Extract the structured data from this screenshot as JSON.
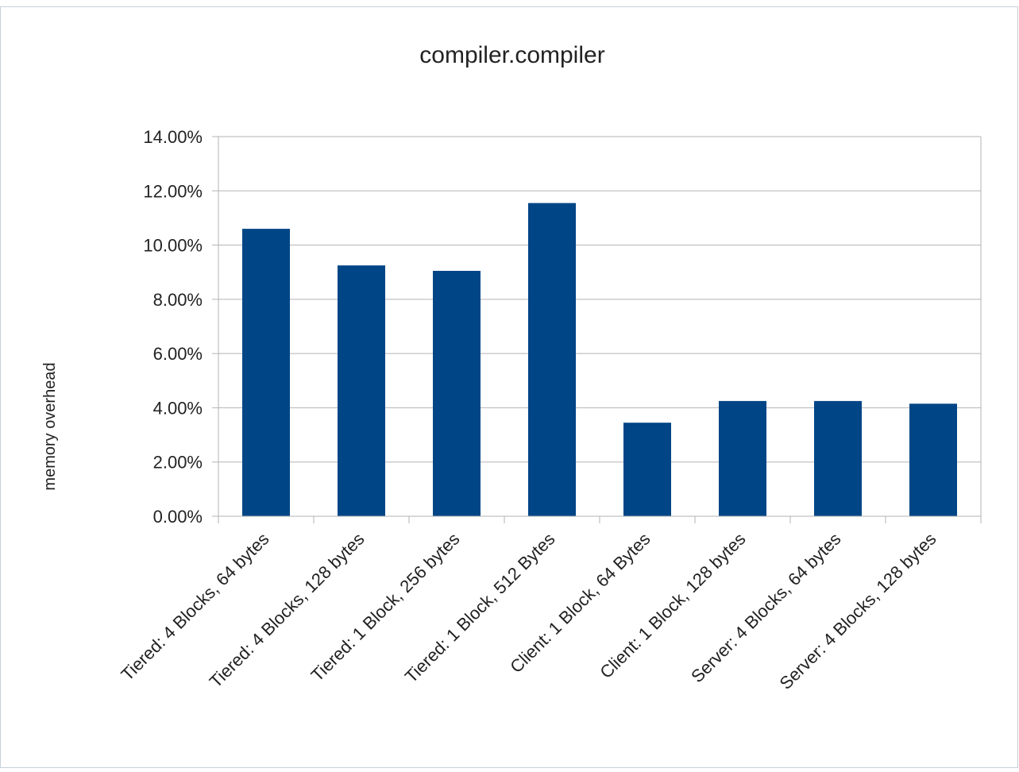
{
  "chart_data": {
    "type": "bar",
    "title": "compiler.compiler",
    "xlabel": "",
    "ylabel": "memory overhead",
    "categories": [
      "Tiered: 4 Blocks, 64 bytes",
      "Tiered: 4 Blocks, 128 bytes",
      "Tiered: 1 Block, 256 bytes",
      "Tiered: 1 Block, 512 Bytes",
      "Client: 1 Block, 64 Bytes",
      "Client: 1 Block, 128 bytes",
      "Server: 4 Blocks, 64 bytes",
      "Server: 4 Blocks, 128 bytes"
    ],
    "values": [
      10.6,
      9.25,
      9.05,
      11.55,
      3.45,
      4.25,
      4.25,
      4.15
    ],
    "ylim": [
      0,
      14
    ],
    "yticks": [
      0,
      2,
      4,
      6,
      8,
      10,
      12,
      14
    ],
    "ytick_labels": [
      "0.00%",
      "2.00%",
      "4.00%",
      "6.00%",
      "8.00%",
      "10.00%",
      "12.00%",
      "14.00%"
    ],
    "grid": true,
    "legend": "none",
    "bar_color": "#004586"
  }
}
